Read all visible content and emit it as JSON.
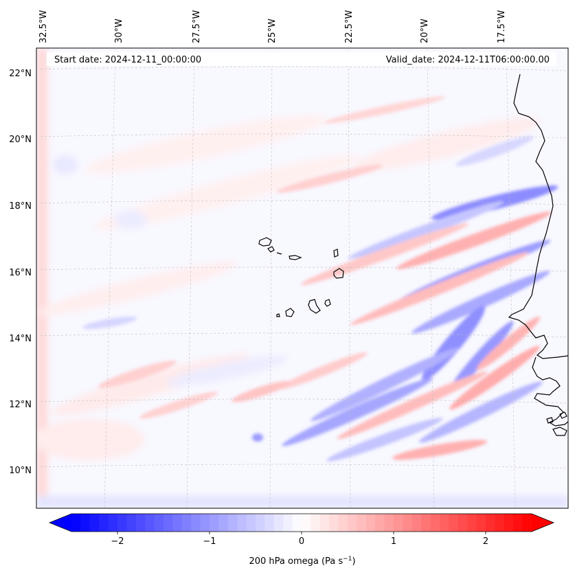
{
  "map": {
    "header": {
      "start_date": "Start date: 2024-12-11_00:00:00",
      "valid_date": "Valid_date: 2024-12-11T06:00:00.00"
    },
    "lon_labels": [
      "32.5°W",
      "30°W",
      "27.5°W",
      "25°W",
      "22.5°W",
      "20°W",
      "17.5°W"
    ],
    "lat_labels": [
      "22°N",
      "20°N",
      "18°N",
      "16°N",
      "14°N",
      "12°N",
      "10°N"
    ],
    "colorbar": {
      "ticks": [
        "−2",
        "−1",
        "0",
        "1",
        "2"
      ],
      "tick_values": [
        -2,
        -1,
        0,
        1,
        2
      ],
      "range": [
        -2.5,
        2.5
      ],
      "label": "200 hPa omega (Pa s",
      "label_sup": "−1",
      "label_close": ")",
      "negative_color": "#0000ff",
      "positive_color": "#ff0000",
      "levels": 50
    }
  },
  "chart_data": {
    "type": "heatmap",
    "variable": "200 hPa omega",
    "units": "Pa s^-1",
    "start_date": "2024-12-11_00:00:00",
    "valid_date": "2024-12-11T06:00:00.00",
    "color_range": [
      -2.5,
      2.5
    ],
    "colorbar_ticks": [
      -2,
      -1,
      0,
      1,
      2
    ],
    "lon_ticks": [
      "32.5°W",
      "30°W",
      "27.5°W",
      "25°W",
      "22.5°W",
      "20°W",
      "17.5°W"
    ],
    "lat_ticks": [
      "22°N",
      "20°N",
      "18°N",
      "16°N",
      "14°N",
      "12°N",
      "10°N"
    ]
  }
}
